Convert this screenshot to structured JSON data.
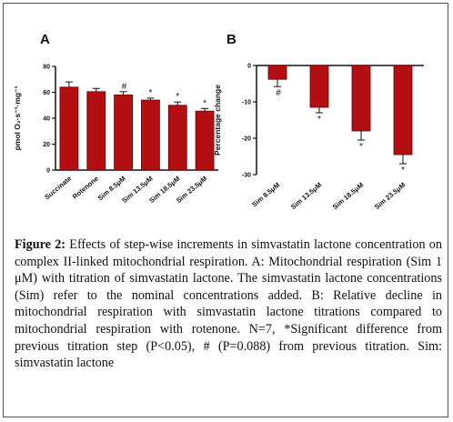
{
  "caption": {
    "label": "Figure 2:",
    "text": "Effects of step-wise increments in simvastatin lactone concentration on complex II-linked mitochondrial respiration. A: Mitochondrial respiration (Sim 1 μM) with titration of simvastatin lactone. The simvastatin lactone concentrations (Sim) refer to the nominal concentrations added. B: Relative decline in mitochondrial respiration with simvastatin lactone titrations compared to mitochondrial respiration with rotenone. N=7, *Significant difference from previous titration step (P<0.05), # (P=0.088) from previous titration. Sim: simvastatin lactone"
  },
  "colors": {
    "bar": "#b30f12",
    "bar_edge": "#6b0000",
    "axis": "#111111"
  },
  "chart_data": [
    {
      "panel": "A",
      "type": "bar",
      "ylabel": "pmol O₂·s⁻¹·mg⁻¹",
      "ylim": [
        0,
        80
      ],
      "yticks": [
        0,
        20,
        40,
        60,
        80
      ],
      "categories": [
        "Succinate",
        "Rotenone",
        "Sim 8.5μM",
        "Sim 13.5μM",
        "Sim 18.5μM",
        "Sim 23.5μM"
      ],
      "values": [
        64,
        60.5,
        58,
        54,
        50,
        45.5
      ],
      "errors": [
        4,
        2.5,
        2.5,
        1.5,
        2.5,
        2
      ],
      "annotations": [
        "",
        "",
        "#",
        "*",
        "*",
        "*"
      ]
    },
    {
      "panel": "B",
      "type": "bar",
      "ylabel": "Percentage change",
      "ylim": [
        -30,
        0
      ],
      "yticks": [
        0,
        -10,
        -20,
        -30
      ],
      "categories": [
        "Sim 8.5μM",
        "Sim 13.5μM",
        "Sim 18.5μM",
        "Sim 23.5μM"
      ],
      "values": [
        -3.8,
        -11.5,
        -18,
        -24.5
      ],
      "errors": [
        2,
        1.5,
        2.5,
        2.5
      ],
      "annotations": [
        "#",
        "*",
        "*",
        "*"
      ]
    }
  ]
}
